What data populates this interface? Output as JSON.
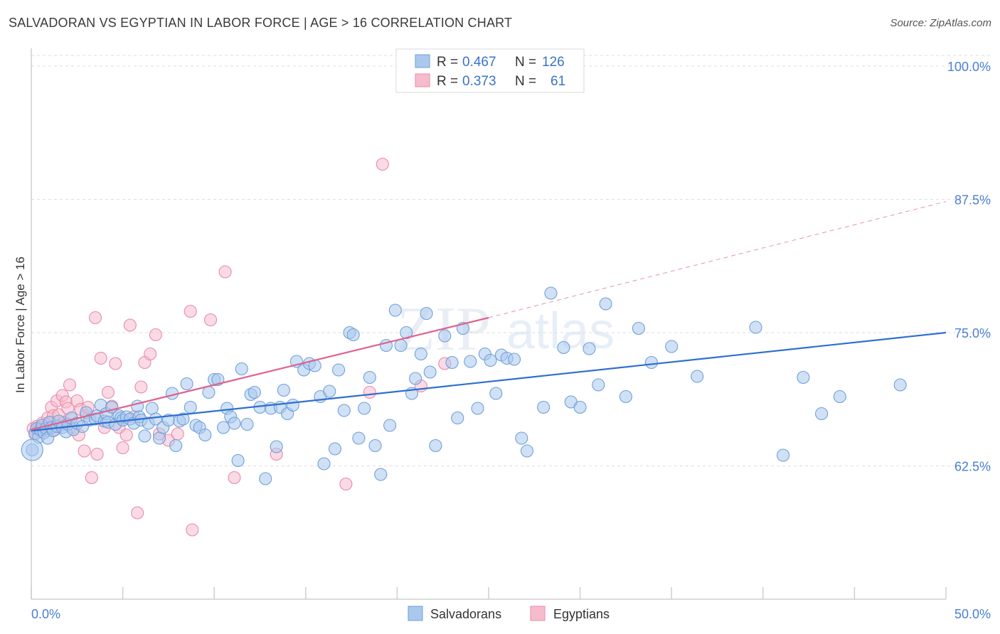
{
  "header": {
    "title": "SALVADORAN VS EGYPTIAN IN LABOR FORCE | AGE > 16 CORRELATION CHART",
    "source": "Source: ZipAtlas.com"
  },
  "watermark": {
    "zip": "ZIP",
    "atlas": "atlas"
  },
  "colors": {
    "blue_fill": "#aac8ee",
    "blue_stroke": "#6f9fd8",
    "blue_line": "#2e6fd0",
    "pink_fill": "#f6bccd",
    "pink_stroke": "#e98aa8",
    "pink_line": "#e0628c",
    "tick_label": "#4a7fd0",
    "grid": "#dddddd",
    "axis": "#cfcfcf"
  },
  "legend_top": {
    "rows": [
      {
        "r_label": "R =",
        "r_value": "0.467",
        "n_label": "N =",
        "n_value": "126",
        "color": "blue"
      },
      {
        "r_label": "R =",
        "r_value": "0.373",
        "n_label": "N =",
        "n_value": "61",
        "color": "pink"
      }
    ]
  },
  "legend_bottom": {
    "items": [
      {
        "label": "Salvadorans",
        "color": "blue"
      },
      {
        "label": "Egyptians",
        "color": "pink"
      }
    ]
  },
  "chart_data": {
    "type": "scatter",
    "title": "SALVADORAN VS EGYPTIAN IN LABOR FORCE | AGE > 16 CORRELATION CHART",
    "ylabel": "In Labor Force | Age > 16",
    "xlabel": "",
    "xlim": [
      0,
      50
    ],
    "ylim": [
      50,
      101
    ],
    "x_tick_labels": [
      {
        "value": 0,
        "label": "0.0%"
      },
      {
        "value": 50,
        "label": "50.0%"
      }
    ],
    "x_minor_ticks": [
      0,
      5,
      10,
      15,
      20,
      25,
      30,
      35,
      40,
      45,
      50
    ],
    "y_ticks": [
      {
        "value": 100,
        "label": "100.0%"
      },
      {
        "value": 87.5,
        "label": "87.5%"
      },
      {
        "value": 75,
        "label": "75.0%"
      },
      {
        "value": 62.5,
        "label": "62.5%"
      }
    ],
    "grid": true,
    "legend_position": "top-center",
    "series": [
      {
        "name": "Salvadorans",
        "color": "blue",
        "trend": {
          "x0": 0,
          "y0": 65.8,
          "x1": 50,
          "y1": 75.0
        },
        "points": [
          [
            0.2,
            65.5
          ],
          [
            0.3,
            66.0
          ],
          [
            0.4,
            65.2
          ],
          [
            0.5,
            65.9
          ],
          [
            0.6,
            66.3
          ],
          [
            0.7,
            65.6
          ],
          [
            0.8,
            66.0
          ],
          [
            0.9,
            65.1
          ],
          [
            1.0,
            66.6
          ],
          [
            1.1,
            66.1
          ],
          [
            1.2,
            65.8
          ],
          [
            1.4,
            66.2
          ],
          [
            1.5,
            66.7
          ],
          [
            1.7,
            66.1
          ],
          [
            1.9,
            65.7
          ],
          [
            2.0,
            66.4
          ],
          [
            2.2,
            67.0
          ],
          [
            2.3,
            65.9
          ],
          [
            2.5,
            66.5
          ],
          [
            2.8,
            66.2
          ],
          [
            3.0,
            67.5
          ],
          [
            3.2,
            66.8
          ],
          [
            3.5,
            66.9
          ],
          [
            3.6,
            67.2
          ],
          [
            3.8,
            68.2
          ],
          [
            4.0,
            66.7
          ],
          [
            4.1,
            67.4
          ],
          [
            4.2,
            66.6
          ],
          [
            4.4,
            68.0
          ],
          [
            4.6,
            66.4
          ],
          [
            4.8,
            67.2
          ],
          [
            4.9,
            67.0
          ],
          [
            5.0,
            66.8
          ],
          [
            5.2,
            67.1
          ],
          [
            5.4,
            66.9
          ],
          [
            5.6,
            66.5
          ],
          [
            5.8,
            68.1
          ],
          [
            5.9,
            67.1
          ],
          [
            6.0,
            66.8
          ],
          [
            6.2,
            65.3
          ],
          [
            6.4,
            66.5
          ],
          [
            6.6,
            67.9
          ],
          [
            6.8,
            66.9
          ],
          [
            7.0,
            65.1
          ],
          [
            7.2,
            66.1
          ],
          [
            7.5,
            66.8
          ],
          [
            7.7,
            69.3
          ],
          [
            7.9,
            64.4
          ],
          [
            8.1,
            66.7
          ],
          [
            8.3,
            66.9
          ],
          [
            8.5,
            70.2
          ],
          [
            8.7,
            68.0
          ],
          [
            9.0,
            66.3
          ],
          [
            9.2,
            66.1
          ],
          [
            9.5,
            65.4
          ],
          [
            9.7,
            69.4
          ],
          [
            10.0,
            70.6
          ],
          [
            10.2,
            70.6
          ],
          [
            10.5,
            66.1
          ],
          [
            10.7,
            67.9
          ],
          [
            10.9,
            67.1
          ],
          [
            11.1,
            66.5
          ],
          [
            11.3,
            63.0
          ],
          [
            11.5,
            71.6
          ],
          [
            11.8,
            66.4
          ],
          [
            12.0,
            69.2
          ],
          [
            12.2,
            69.4
          ],
          [
            12.5,
            68.0
          ],
          [
            12.8,
            61.3
          ],
          [
            13.1,
            67.9
          ],
          [
            13.4,
            64.3
          ],
          [
            13.6,
            68.0
          ],
          [
            13.8,
            69.6
          ],
          [
            14.0,
            67.4
          ],
          [
            14.3,
            68.2
          ],
          [
            14.5,
            72.3
          ],
          [
            14.9,
            71.5
          ],
          [
            15.2,
            72.1
          ],
          [
            15.5,
            71.9
          ],
          [
            15.8,
            69.0
          ],
          [
            16.0,
            62.7
          ],
          [
            16.3,
            69.5
          ],
          [
            16.6,
            64.1
          ],
          [
            16.8,
            71.5
          ],
          [
            17.1,
            67.7
          ],
          [
            17.4,
            75.0
          ],
          [
            17.6,
            74.8
          ],
          [
            17.9,
            65.1
          ],
          [
            18.2,
            67.9
          ],
          [
            18.5,
            70.8
          ],
          [
            18.8,
            64.4
          ],
          [
            19.1,
            61.7
          ],
          [
            19.4,
            73.8
          ],
          [
            19.6,
            66.3
          ],
          [
            19.9,
            77.1
          ],
          [
            20.2,
            73.8
          ],
          [
            20.5,
            75.0
          ],
          [
            20.8,
            69.3
          ],
          [
            21.0,
            70.7
          ],
          [
            21.3,
            73.0
          ],
          [
            21.6,
            76.8
          ],
          [
            21.8,
            71.3
          ],
          [
            22.1,
            64.4
          ],
          [
            22.6,
            74.7
          ],
          [
            23.0,
            72.2
          ],
          [
            23.3,
            67.0
          ],
          [
            23.6,
            75.4
          ],
          [
            24.0,
            72.3
          ],
          [
            24.4,
            67.9
          ],
          [
            24.8,
            73.0
          ],
          [
            25.1,
            72.4
          ],
          [
            25.4,
            69.3
          ],
          [
            25.7,
            72.9
          ],
          [
            26.0,
            72.6
          ],
          [
            26.4,
            72.5
          ],
          [
            26.8,
            65.1
          ],
          [
            27.1,
            63.9
          ],
          [
            28.0,
            68.0
          ],
          [
            28.4,
            78.7
          ],
          [
            29.1,
            73.6
          ],
          [
            29.5,
            68.5
          ],
          [
            30.0,
            68.0
          ],
          [
            30.5,
            73.5
          ],
          [
            31.0,
            70.1
          ],
          [
            31.4,
            77.7
          ],
          [
            32.5,
            69.0
          ],
          [
            33.2,
            75.4
          ],
          [
            33.9,
            72.2
          ],
          [
            35.0,
            73.7
          ],
          [
            36.4,
            70.9
          ],
          [
            39.6,
            75.5
          ],
          [
            41.1,
            63.5
          ],
          [
            42.2,
            70.8
          ],
          [
            43.2,
            67.4
          ],
          [
            44.2,
            69.0
          ],
          [
            47.5,
            70.1
          ],
          [
            0.05,
            64.0
          ]
        ],
        "big_point": [
          0.05,
          64.0
        ]
      },
      {
        "name": "Egyptians",
        "color": "pink",
        "trend": {
          "x0": 0,
          "y0": 65.9,
          "x1": 25,
          "y1": 76.4,
          "dash_x1": 50,
          "dash_y1": 87.3
        },
        "points": [
          [
            0.1,
            66.0
          ],
          [
            0.2,
            65.6
          ],
          [
            0.3,
            66.2
          ],
          [
            0.4,
            66.0
          ],
          [
            0.5,
            65.7
          ],
          [
            0.6,
            66.5
          ],
          [
            0.7,
            66.1
          ],
          [
            0.8,
            65.8
          ],
          [
            0.9,
            67.0
          ],
          [
            1.0,
            66.5
          ],
          [
            1.1,
            68.0
          ],
          [
            1.2,
            67.2
          ],
          [
            1.3,
            65.9
          ],
          [
            1.4,
            68.6
          ],
          [
            1.5,
            67.3
          ],
          [
            1.6,
            66.3
          ],
          [
            1.7,
            69.1
          ],
          [
            1.8,
            66.6
          ],
          [
            1.9,
            68.5
          ],
          [
            2.0,
            67.9
          ],
          [
            2.1,
            70.1
          ],
          [
            2.2,
            67.0
          ],
          [
            2.3,
            66.1
          ],
          [
            2.5,
            68.6
          ],
          [
            2.6,
            65.4
          ],
          [
            2.7,
            67.8
          ],
          [
            2.9,
            63.9
          ],
          [
            3.0,
            67.2
          ],
          [
            3.1,
            68.0
          ],
          [
            3.3,
            61.4
          ],
          [
            3.5,
            76.4
          ],
          [
            3.6,
            63.6
          ],
          [
            3.8,
            72.6
          ],
          [
            4.0,
            66.1
          ],
          [
            4.2,
            69.4
          ],
          [
            4.4,
            68.1
          ],
          [
            4.6,
            72.1
          ],
          [
            4.8,
            66.1
          ],
          [
            5.0,
            64.2
          ],
          [
            5.2,
            65.4
          ],
          [
            5.4,
            75.7
          ],
          [
            5.6,
            67.1
          ],
          [
            5.8,
            58.1
          ],
          [
            6.0,
            69.9
          ],
          [
            6.2,
            72.2
          ],
          [
            6.5,
            73.0
          ],
          [
            6.8,
            74.8
          ],
          [
            7.0,
            65.5
          ],
          [
            7.5,
            64.9
          ],
          [
            8.0,
            65.5
          ],
          [
            8.7,
            77.0
          ],
          [
            8.8,
            56.5
          ],
          [
            9.8,
            76.2
          ],
          [
            10.6,
            80.7
          ],
          [
            11.1,
            61.4
          ],
          [
            13.4,
            63.6
          ],
          [
            17.2,
            60.8
          ],
          [
            18.5,
            69.4
          ],
          [
            19.2,
            90.8
          ],
          [
            21.3,
            70.0
          ],
          [
            22.6,
            72.1
          ]
        ]
      }
    ]
  }
}
